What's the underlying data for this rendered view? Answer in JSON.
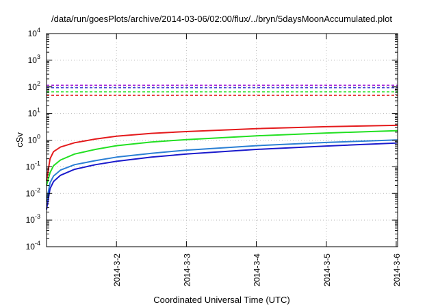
{
  "chart_data": {
    "type": "line",
    "title": "/data/run/goesPlots/archive/2014-03-06/02:00/flux/../bryn/5daysMoonAccumulated.plot",
    "xlabel": "Coordinated Universal Time (UTC)",
    "ylabel": "cSv",
    "y_scale": "log",
    "ylim": [
      0.0001,
      10000
    ],
    "xlim": [
      0,
      5.02
    ],
    "y_ticks": [
      {
        "base": "10",
        "exp": "-4",
        "value": 0.0001
      },
      {
        "base": "10",
        "exp": "-3",
        "value": 0.001
      },
      {
        "base": "10",
        "exp": "-2",
        "value": 0.01
      },
      {
        "base": "10",
        "exp": "-1",
        "value": 0.1
      },
      {
        "base": "10",
        "exp": "0",
        "value": 1
      },
      {
        "base": "10",
        "exp": "1",
        "value": 10
      },
      {
        "base": "10",
        "exp": "2",
        "value": 100
      },
      {
        "base": "10",
        "exp": "3",
        "value": 1000
      },
      {
        "base": "10",
        "exp": "4",
        "value": 10000
      }
    ],
    "x_ticks": [
      {
        "label": "2014-3-2",
        "value": 1
      },
      {
        "label": "2014-3-3",
        "value": 2
      },
      {
        "label": "2014-3-4",
        "value": 3
      },
      {
        "label": "2014-3-5",
        "value": 4
      },
      {
        "label": "2014-3-6",
        "value": 5
      }
    ],
    "grid": true,
    "series": [
      {
        "color": "#e41a1c",
        "x": [
          0.0,
          0.05,
          0.1,
          0.2,
          0.4,
          0.7,
          1.0,
          1.5,
          2.0,
          3.0,
          4.0,
          5.0,
          5.02
        ],
        "values": [
          0.03,
          0.2,
          0.37,
          0.55,
          0.8,
          1.1,
          1.4,
          1.8,
          2.1,
          2.7,
          3.2,
          3.6,
          3.6
        ]
      },
      {
        "color": "#22e022",
        "x": [
          0.0,
          0.05,
          0.1,
          0.2,
          0.4,
          0.7,
          1.0,
          1.5,
          2.0,
          3.0,
          4.0,
          5.0,
          5.02
        ],
        "values": [
          0.02,
          0.06,
          0.11,
          0.18,
          0.3,
          0.45,
          0.62,
          0.85,
          1.05,
          1.45,
          1.85,
          2.25,
          2.25
        ]
      },
      {
        "color": "#2a7fd4",
        "x": [
          0.0,
          0.05,
          0.1,
          0.2,
          0.4,
          0.7,
          1.0,
          1.5,
          2.0,
          3.0,
          4.0,
          5.0,
          5.02
        ],
        "values": [
          0.005,
          0.025,
          0.045,
          0.075,
          0.12,
          0.17,
          0.23,
          0.32,
          0.42,
          0.62,
          0.82,
          1.02,
          1.02
        ]
      },
      {
        "color": "#1a1acc",
        "x": [
          0.0,
          0.05,
          0.1,
          0.2,
          0.4,
          0.7,
          1.0,
          1.5,
          2.0,
          3.0,
          4.0,
          5.0,
          5.02
        ],
        "values": [
          0.0025,
          0.015,
          0.028,
          0.048,
          0.08,
          0.12,
          0.16,
          0.23,
          0.3,
          0.45,
          0.6,
          0.78,
          0.8
        ]
      }
    ],
    "limit_lines": [
      {
        "color": "#9400d3",
        "value": 115,
        "style": "dashed"
      },
      {
        "color": "#1a1acc",
        "value": 93,
        "style": "dashed"
      },
      {
        "color": "#22e022",
        "value": 65,
        "style": "dashed"
      },
      {
        "color": "#e41a1c",
        "value": 48,
        "style": "dashed"
      }
    ]
  }
}
